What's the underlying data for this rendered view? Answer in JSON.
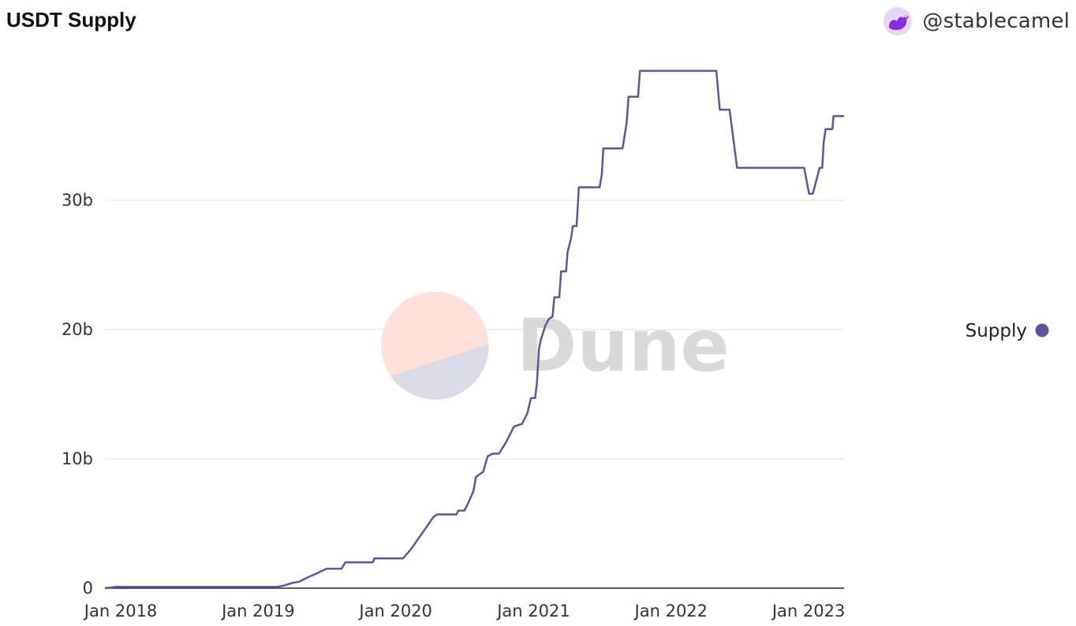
{
  "header": {
    "title": "USDT Supply",
    "author": "@stablecamel",
    "avatar_icon": "camel-avatar"
  },
  "watermark": {
    "text": "Dune",
    "logo_icon": "dune-logo"
  },
  "chart_data": {
    "type": "line",
    "title": "USDT Supply",
    "xlabel": "",
    "ylabel": "",
    "x_tick_labels": [
      "Jan 2018",
      "Jan 2019",
      "Jan 2020",
      "Jan 2021",
      "Jan 2022",
      "Jan 2023"
    ],
    "y_tick_labels": [
      "0",
      "10b",
      "20b",
      "30b"
    ],
    "y_ticks": [
      0,
      10,
      20,
      30
    ],
    "ylim": [
      0,
      40.3
    ],
    "xlim": [
      "2017-11-20",
      "2023-04-05"
    ],
    "grid": true,
    "legend_position": "right",
    "colors": {
      "series": "#5a57a0",
      "grid": "#ececec",
      "axis": "#222222"
    },
    "series": [
      {
        "name": "Supply",
        "unit": "billions USD",
        "points": [
          [
            "2017-11-20",
            0.0
          ],
          [
            "2017-12-20",
            0.1
          ],
          [
            "2018-03-01",
            0.1
          ],
          [
            "2018-06-01",
            0.1
          ],
          [
            "2018-09-01",
            0.1
          ],
          [
            "2018-12-01",
            0.1
          ],
          [
            "2019-01-15",
            0.1
          ],
          [
            "2019-02-20",
            0.1
          ],
          [
            "2019-03-10",
            0.2
          ],
          [
            "2019-04-01",
            0.4
          ],
          [
            "2019-04-20",
            0.5
          ],
          [
            "2019-05-10",
            0.8
          ],
          [
            "2019-06-10",
            1.2
          ],
          [
            "2019-07-01",
            1.5
          ],
          [
            "2019-08-10",
            1.5
          ],
          [
            "2019-08-20",
            2.0
          ],
          [
            "2019-09-30",
            2.0
          ],
          [
            "2019-10-10",
            2.0
          ],
          [
            "2019-11-01",
            2.0
          ],
          [
            "2019-11-05",
            2.3
          ],
          [
            "2020-01-20",
            2.3
          ],
          [
            "2020-02-10",
            3.0
          ],
          [
            "2020-03-10",
            4.2
          ],
          [
            "2020-04-10",
            5.5
          ],
          [
            "2020-04-20",
            5.7
          ],
          [
            "2020-05-20",
            5.7
          ],
          [
            "2020-06-10",
            5.7
          ],
          [
            "2020-06-15",
            6.0
          ],
          [
            "2020-07-01",
            6.0
          ],
          [
            "2020-07-10",
            6.5
          ],
          [
            "2020-07-25",
            7.5
          ],
          [
            "2020-08-01",
            8.6
          ],
          [
            "2020-08-20",
            9.0
          ],
          [
            "2020-09-01",
            10.2
          ],
          [
            "2020-09-15",
            10.4
          ],
          [
            "2020-10-01",
            10.4
          ],
          [
            "2020-10-20",
            11.3
          ],
          [
            "2020-11-10",
            12.5
          ],
          [
            "2020-12-01",
            12.7
          ],
          [
            "2020-12-15",
            13.5
          ],
          [
            "2020-12-25",
            14.7
          ],
          [
            "2021-01-05",
            14.7
          ],
          [
            "2021-01-10",
            16.0
          ],
          [
            "2021-01-15",
            18.5
          ],
          [
            "2021-01-20",
            19.2
          ],
          [
            "2021-02-01",
            20.3
          ],
          [
            "2021-02-10",
            20.8
          ],
          [
            "2021-02-20",
            21.0
          ],
          [
            "2021-02-25",
            22.5
          ],
          [
            "2021-03-10",
            22.5
          ],
          [
            "2021-03-15",
            24.5
          ],
          [
            "2021-03-28",
            24.5
          ],
          [
            "2021-04-01",
            26.0
          ],
          [
            "2021-04-10",
            27.0
          ],
          [
            "2021-04-15",
            28.0
          ],
          [
            "2021-04-25",
            28.0
          ],
          [
            "2021-05-01",
            31.0
          ],
          [
            "2021-06-01",
            31.0
          ],
          [
            "2021-06-25",
            31.0
          ],
          [
            "2021-07-01",
            32.0
          ],
          [
            "2021-07-05",
            34.0
          ],
          [
            "2021-08-20",
            34.0
          ],
          [
            "2021-08-25",
            34.0
          ],
          [
            "2021-09-05",
            36.0
          ],
          [
            "2021-09-10",
            38.0
          ],
          [
            "2021-10-05",
            38.0
          ],
          [
            "2021-10-10",
            40.0
          ],
          [
            "2021-11-15",
            40.0
          ],
          [
            "2022-01-15",
            40.0
          ],
          [
            "2022-05-01",
            40.0
          ],
          [
            "2022-05-10",
            37.0
          ],
          [
            "2022-06-05",
            37.0
          ],
          [
            "2022-06-25",
            32.5
          ],
          [
            "2022-08-01",
            32.5
          ],
          [
            "2022-10-01",
            32.5
          ],
          [
            "2022-12-01",
            32.5
          ],
          [
            "2022-12-20",
            32.5
          ],
          [
            "2023-01-02",
            30.5
          ],
          [
            "2023-01-12",
            30.5
          ],
          [
            "2023-01-30",
            32.5
          ],
          [
            "2023-02-06",
            32.5
          ],
          [
            "2023-02-10",
            34.5
          ],
          [
            "2023-02-15",
            35.5
          ],
          [
            "2023-03-05",
            35.5
          ],
          [
            "2023-03-08",
            36.5
          ],
          [
            "2023-04-05",
            36.5
          ]
        ]
      }
    ]
  }
}
